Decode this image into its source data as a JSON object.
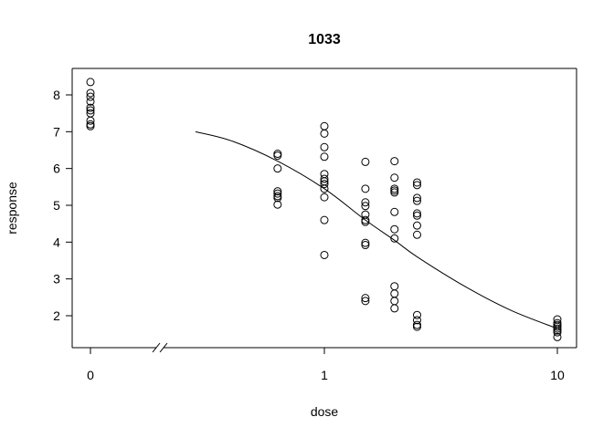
{
  "chart_data": {
    "type": "scatter",
    "title": "1033",
    "xlabel": "dose",
    "ylabel": "response",
    "x_scale": "log10 with zero placed at left, axis break between 0 and positive doses",
    "x_ticks": [
      {
        "value": 0,
        "label": "0"
      },
      {
        "value": 1,
        "label": "1"
      },
      {
        "value": 10,
        "label": "10"
      }
    ],
    "y_ticks": [
      {
        "value": 2,
        "label": "2"
      },
      {
        "value": 3,
        "label": "3"
      },
      {
        "value": 4,
        "label": "4"
      },
      {
        "value": 5,
        "label": "5"
      },
      {
        "value": 6,
        "label": "6"
      },
      {
        "value": 7,
        "label": "7"
      },
      {
        "value": 8,
        "label": "8"
      }
    ],
    "ylim": [
      1.3,
      8.6
    ],
    "grid": false,
    "points": [
      {
        "dose": 0,
        "response": 8.35
      },
      {
        "dose": 0,
        "response": 8.05
      },
      {
        "dose": 0,
        "response": 7.95
      },
      {
        "dose": 0,
        "response": 7.82
      },
      {
        "dose": 0,
        "response": 7.65
      },
      {
        "dose": 0,
        "response": 7.58
      },
      {
        "dose": 0,
        "response": 7.5
      },
      {
        "dose": 0,
        "response": 7.3
      },
      {
        "dose": 0,
        "response": 7.2
      },
      {
        "dose": 0,
        "response": 7.15
      },
      {
        "dose": 0.63,
        "response": 6.4
      },
      {
        "dose": 0.63,
        "response": 6.35
      },
      {
        "dose": 0.63,
        "response": 6.0
      },
      {
        "dose": 0.63,
        "response": 5.38
      },
      {
        "dose": 0.63,
        "response": 5.32
      },
      {
        "dose": 0.63,
        "response": 5.25
      },
      {
        "dose": 0.63,
        "response": 5.2
      },
      {
        "dose": 0.63,
        "response": 5.02
      },
      {
        "dose": 1,
        "response": 7.15
      },
      {
        "dose": 1,
        "response": 6.95
      },
      {
        "dose": 1,
        "response": 6.58
      },
      {
        "dose": 1,
        "response": 6.32
      },
      {
        "dose": 1,
        "response": 5.85
      },
      {
        "dose": 1,
        "response": 5.72
      },
      {
        "dose": 1,
        "response": 5.65
      },
      {
        "dose": 1,
        "response": 5.58
      },
      {
        "dose": 1,
        "response": 5.45
      },
      {
        "dose": 1,
        "response": 5.22
      },
      {
        "dose": 1,
        "response": 4.6
      },
      {
        "dose": 1,
        "response": 3.65
      },
      {
        "dose": 1.5,
        "response": 6.18
      },
      {
        "dose": 1.5,
        "response": 5.45
      },
      {
        "dose": 1.5,
        "response": 5.08
      },
      {
        "dose": 1.5,
        "response": 4.98
      },
      {
        "dose": 1.5,
        "response": 4.75
      },
      {
        "dose": 1.5,
        "response": 4.6
      },
      {
        "dose": 1.5,
        "response": 4.55
      },
      {
        "dose": 1.5,
        "response": 3.98
      },
      {
        "dose": 1.5,
        "response": 3.92
      },
      {
        "dose": 1.5,
        "response": 2.48
      },
      {
        "dose": 1.5,
        "response": 2.4
      },
      {
        "dose": 2,
        "response": 6.2
      },
      {
        "dose": 2,
        "response": 5.75
      },
      {
        "dose": 2,
        "response": 5.45
      },
      {
        "dose": 2,
        "response": 5.4
      },
      {
        "dose": 2,
        "response": 5.35
      },
      {
        "dose": 2,
        "response": 4.82
      },
      {
        "dose": 2,
        "response": 4.35
      },
      {
        "dose": 2,
        "response": 4.1
      },
      {
        "dose": 2,
        "response": 2.8
      },
      {
        "dose": 2,
        "response": 2.6
      },
      {
        "dose": 2,
        "response": 2.4
      },
      {
        "dose": 2,
        "response": 2.2
      },
      {
        "dose": 2.5,
        "response": 5.62
      },
      {
        "dose": 2.5,
        "response": 5.55
      },
      {
        "dose": 2.5,
        "response": 5.2
      },
      {
        "dose": 2.5,
        "response": 5.12
      },
      {
        "dose": 2.5,
        "response": 4.78
      },
      {
        "dose": 2.5,
        "response": 4.72
      },
      {
        "dose": 2.5,
        "response": 4.45
      },
      {
        "dose": 2.5,
        "response": 4.2
      },
      {
        "dose": 2.5,
        "response": 2.02
      },
      {
        "dose": 2.5,
        "response": 1.88
      },
      {
        "dose": 2.5,
        "response": 1.75
      },
      {
        "dose": 2.5,
        "response": 1.7
      },
      {
        "dose": 10,
        "response": 1.9
      },
      {
        "dose": 10,
        "response": 1.8
      },
      {
        "dose": 10,
        "response": 1.75
      },
      {
        "dose": 10,
        "response": 1.7
      },
      {
        "dose": 10,
        "response": 1.65
      },
      {
        "dose": 10,
        "response": 1.6
      },
      {
        "dose": 10,
        "response": 1.55
      },
      {
        "dose": 10,
        "response": 1.42
      }
    ],
    "fitted_curve": [
      {
        "dose": 0.28,
        "response": 7.0
      },
      {
        "dose": 0.4,
        "response": 6.75
      },
      {
        "dose": 0.63,
        "response": 6.2
      },
      {
        "dose": 1,
        "response": 5.45
      },
      {
        "dose": 1.5,
        "response": 4.6
      },
      {
        "dose": 2,
        "response": 4.05
      },
      {
        "dose": 2.5,
        "response": 3.6
      },
      {
        "dose": 4,
        "response": 2.8
      },
      {
        "dose": 6.3,
        "response": 2.15
      },
      {
        "dose": 10,
        "response": 1.65
      }
    ]
  }
}
